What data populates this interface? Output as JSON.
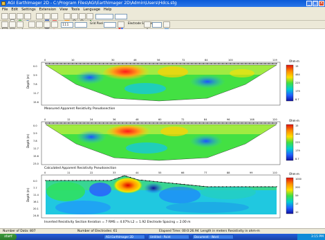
{
  "window": {
    "title": "AGI EarthImager 2D - C:\\Program Files\\AGI\\EarthImager 2D\\Admin\\Users\\Hdcs.stg"
  },
  "menu": [
    "File",
    "Edit",
    "Settings",
    "Extension",
    "View",
    "Tools",
    "Language",
    "Help"
  ],
  "toolbar": {
    "zoom_value": "",
    "number_value": "111",
    "grid_label": "Grid Pixel",
    "electrode_label": "Electrode Symbol"
  },
  "panels": [
    {
      "id": "measured",
      "caption": "Measured Apparent Resistivity Pseudosection",
      "ylabel": "Depth (m)",
      "scale_title": "Ohm-m",
      "scale_ticks": [
        "15",
        "464",
        "225",
        "179",
        "8.7"
      ],
      "x_ticks": [
        "0",
        "10",
        "30",
        "46",
        "56",
        "72",
        "84",
        "100",
        "119"
      ],
      "y_ticks": [
        "0.0",
        "3.9",
        "7.8",
        "11.7",
        "15.6"
      ]
    },
    {
      "id": "calculated",
      "caption": "Calculated Apparent Resistivity Pseudosection",
      "ylabel": "Depth (m)",
      "scale_title": "Ohm-m",
      "scale_ticks": [
        "15",
        "464",
        "225",
        "179",
        "8.7"
      ],
      "x_ticks": [
        "0",
        "12",
        "24",
        "36",
        "48",
        "60",
        "72",
        "84",
        "96",
        "108",
        "120"
      ],
      "y_ticks": [
        "0.0",
        "3.9",
        "7.8",
        "11.7",
        "15.6",
        "23.0"
      ]
    },
    {
      "id": "inverted",
      "caption": "Inverted Resistivity Section    Iteration = 7   RMS = 4.07%   L2 = 1.92   Electrode Spacing = 2.00 m",
      "ylabel": "Depth (m)",
      "scale_title": "Ohm-m",
      "scale_ticks": [
        "1000",
        "200",
        "59",
        "17",
        "10"
      ],
      "x_ticks": [
        "0",
        "11",
        "22",
        "33",
        "44",
        "55",
        "66",
        "77",
        "88",
        "99",
        "110"
      ],
      "y_ticks": [
        "0.0",
        "7.7",
        "11.4",
        "16.1",
        "20.1",
        "24.8"
      ]
    }
  ],
  "status": {
    "num_data": "Number of Data: 807",
    "num_electrodes": "Number of Electrodes: 61",
    "elapsed": "Elapsed Time: 00:0:26.94",
    "units": "Length in meters   Resistivity in ohm-m"
  },
  "taskbar": {
    "start_label": "start",
    "tasks": [
      "AGI EarthImager 2D",
      "Untitled - Paint",
      "Document - Word"
    ],
    "clock": "3:15 PM"
  },
  "colors": {
    "titlebar": "#0a5ad8",
    "chrome": "#ece9d8",
    "scale": [
      "#e01010",
      "#ff8c00",
      "#ffe000",
      "#40e040",
      "#00d0d0",
      "#2060ff",
      "#1010a0"
    ]
  }
}
